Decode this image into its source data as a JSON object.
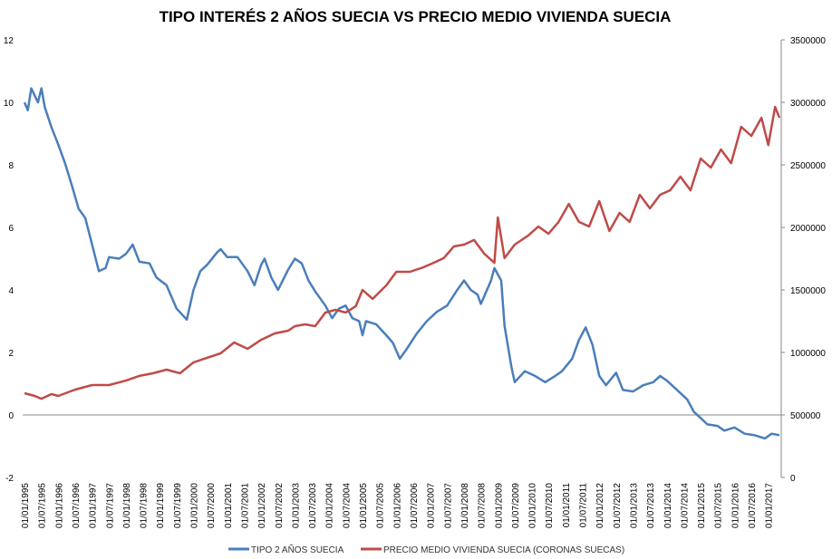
{
  "chart_data": {
    "type": "line",
    "title": "TIPO INTERÉS 2 AÑOS SUECIA VS PRECIO MEDIO VIVIENDA SUECIA",
    "legend_position": "bottom",
    "grid": false,
    "y_left": {
      "range": [
        -2,
        12
      ],
      "ticks": [
        "12",
        "10",
        "8",
        "6",
        "4",
        "2",
        "0",
        "-2"
      ],
      "tick_values": [
        12,
        10,
        8,
        6,
        4,
        2,
        0,
        -2
      ]
    },
    "y_right": {
      "range": [
        0,
        3500000
      ],
      "ticks": [
        "3500000",
        "3000000",
        "2500000",
        "2000000",
        "1500000",
        "1000000",
        "500000",
        "0"
      ],
      "tick_values": [
        3500000,
        3000000,
        2500000,
        2000000,
        1500000,
        1000000,
        500000,
        0
      ]
    },
    "x_range": [
      1995.0,
      2017.33
    ],
    "x_tick_labels": [
      "01/01/1995",
      "01/07/1995",
      "01/01/1996",
      "01/07/1996",
      "01/01/1997",
      "01/07/1997",
      "01/01/1998",
      "01/07/1998",
      "01/01/1999",
      "01/07/1999",
      "01/01/2000",
      "01/07/2000",
      "01/01/2001",
      "01/07/2001",
      "01/01/2002",
      "01/07/2002",
      "01/01/2003",
      "01/07/2003",
      "01/01/2004",
      "01/07/2004",
      "01/01/2005",
      "01/07/2005",
      "01/01/2006",
      "01/07/2006",
      "01/01/2007",
      "01/07/2007",
      "01/01/2008",
      "01/07/2008",
      "01/01/2009",
      "01/07/2009",
      "01/01/2010",
      "01/07/2010",
      "01/01/2011",
      "01/07/2011",
      "01/01/2012",
      "01/07/2012",
      "01/01/2013",
      "01/07/2013",
      "01/01/2014",
      "01/07/2014",
      "01/01/2015",
      "01/07/2015",
      "01/01/2016",
      "01/07/2016",
      "01/01/2017"
    ],
    "series": [
      {
        "name": "TIPO 2 AÑOS SUECIA",
        "axis": "left",
        "color": "#4a7ebb",
        "x": [
          1995.0,
          1995.1,
          1995.2,
          1995.4,
          1995.5,
          1995.6,
          1995.8,
          1996.0,
          1996.2,
          1996.4,
          1996.6,
          1996.8,
          1997.0,
          1997.2,
          1997.4,
          1997.5,
          1997.8,
          1998.0,
          1998.2,
          1998.4,
          1998.7,
          1998.9,
          1999.2,
          1999.5,
          1999.8,
          2000.0,
          2000.2,
          2000.4,
          2000.7,
          2000.8,
          2001.0,
          2001.3,
          2001.6,
          2001.8,
          2002.0,
          2002.1,
          2002.3,
          2002.5,
          2002.8,
          2003.0,
          2003.2,
          2003.4,
          2003.6,
          2003.9,
          2004.1,
          2004.3,
          2004.5,
          2004.7,
          2004.9,
          2005.0,
          2005.1,
          2005.4,
          2005.7,
          2005.9,
          2006.1,
          2006.3,
          2006.6,
          2006.9,
          2007.2,
          2007.5,
          2007.8,
          2008.0,
          2008.2,
          2008.4,
          2008.5,
          2008.8,
          2008.9,
          2009.1,
          2009.2,
          2009.4,
          2009.5,
          2009.8,
          2010.1,
          2010.4,
          2010.7,
          2010.9,
          2011.2,
          2011.4,
          2011.6,
          2011.8,
          2012.0,
          2012.2,
          2012.5,
          2012.7,
          2013.0,
          2013.3,
          2013.6,
          2013.8,
          2014.0,
          2014.3,
          2014.6,
          2014.8,
          2015.0,
          2015.2,
          2015.5,
          2015.7,
          2016.0,
          2016.3,
          2016.6,
          2016.9,
          2017.1,
          2017.33
        ],
        "values": [
          10.0,
          9.75,
          10.45,
          10.0,
          10.45,
          9.85,
          9.2,
          8.65,
          8.05,
          7.35,
          6.6,
          6.3,
          5.45,
          4.6,
          4.7,
          5.05,
          5.0,
          5.15,
          5.45,
          4.9,
          4.85,
          4.4,
          4.15,
          3.4,
          3.05,
          4.0,
          4.6,
          4.8,
          5.2,
          5.3,
          5.05,
          5.05,
          4.6,
          4.15,
          4.8,
          5.0,
          4.4,
          4.0,
          4.65,
          5.0,
          4.85,
          4.3,
          3.95,
          3.5,
          3.1,
          3.4,
          3.5,
          3.1,
          3.0,
          2.55,
          3.0,
          2.9,
          2.55,
          2.3,
          1.8,
          2.1,
          2.6,
          3.0,
          3.3,
          3.5,
          4.0,
          4.3,
          4.0,
          3.85,
          3.55,
          4.3,
          4.7,
          4.3,
          2.85,
          1.55,
          1.05,
          1.4,
          1.25,
          1.05,
          1.25,
          1.4,
          1.8,
          2.4,
          2.8,
          2.25,
          1.25,
          0.95,
          1.35,
          0.8,
          0.75,
          0.95,
          1.05,
          1.25,
          1.1,
          0.8,
          0.5,
          0.1,
          -0.1,
          -0.3,
          -0.35,
          -0.5,
          -0.4,
          -0.6,
          -0.65,
          -0.75,
          -0.6,
          -0.65
        ]
      },
      {
        "name": "PRECIO MEDIO VIVIENDA SUECIA (CORONAS SUECAS)",
        "axis": "right",
        "color": "#be4b48",
        "x": [
          1995.0,
          1995.3,
          1995.5,
          1995.8,
          1996.0,
          1996.5,
          1997.0,
          1997.5,
          1998.0,
          1998.4,
          1998.8,
          1999.2,
          1999.6,
          2000.0,
          2000.4,
          2000.8,
          2001.2,
          2001.6,
          2002.0,
          2002.4,
          2002.8,
          2003.0,
          2003.3,
          2003.6,
          2003.9,
          2004.2,
          2004.5,
          2004.8,
          2005.0,
          2005.3,
          2005.7,
          2006.0,
          2006.4,
          2006.8,
          2007.1,
          2007.4,
          2007.7,
          2008.0,
          2008.3,
          2008.6,
          2008.9,
          2009.0,
          2009.2,
          2009.5,
          2009.9,
          2010.2,
          2010.5,
          2010.8,
          2011.1,
          2011.4,
          2011.7,
          2012.0,
          2012.3,
          2012.6,
          2012.9,
          2013.2,
          2013.5,
          2013.8,
          2014.1,
          2014.4,
          2014.7,
          2015.0,
          2015.3,
          2015.6,
          2015.9,
          2016.2,
          2016.5,
          2016.8,
          2017.0,
          2017.2,
          2017.33
        ],
        "values": [
          674000,
          652000,
          630000,
          667000,
          652000,
          703000,
          739000,
          739000,
          775000,
          812000,
          833000,
          862000,
          833000,
          920000,
          957000,
          993000,
          1080000,
          1029000,
          1101000,
          1152000,
          1174000,
          1210000,
          1225000,
          1210000,
          1319000,
          1341000,
          1319000,
          1370000,
          1500000,
          1428000,
          1536000,
          1645000,
          1645000,
          1681000,
          1717000,
          1754000,
          1848000,
          1862000,
          1899000,
          1790000,
          1717000,
          2080000,
          1754000,
          1862000,
          1935000,
          2007000,
          1949000,
          2044000,
          2188000,
          2044000,
          2007000,
          2210000,
          1971000,
          2116000,
          2044000,
          2261000,
          2152000,
          2261000,
          2297000,
          2406000,
          2297000,
          2551000,
          2478000,
          2623000,
          2514000,
          2804000,
          2732000,
          2877000,
          2659000,
          2964000,
          2877000
        ]
      }
    ]
  }
}
